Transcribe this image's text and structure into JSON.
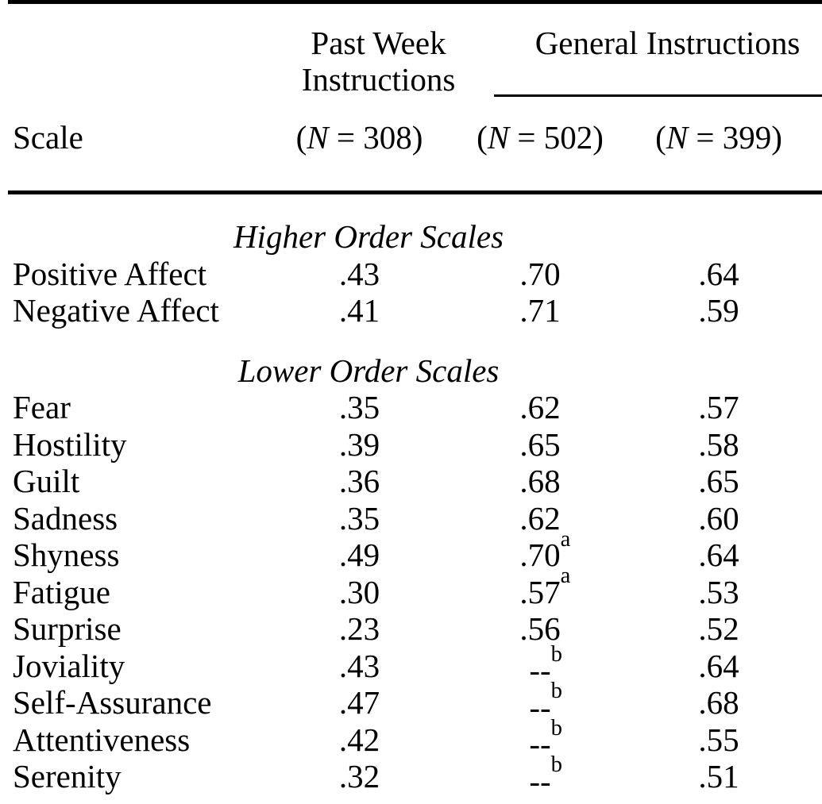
{
  "table": {
    "header": {
      "col1_line1": "Past Week",
      "col1_line2": "Instructions",
      "group": "General Instructions",
      "scale": "Scale",
      "n_cols": [
        {
          "pre": "(",
          "it": "N",
          "post": " = 308)"
        },
        {
          "pre": "(",
          "it": "N",
          "post": " = 502)"
        },
        {
          "pre": "(",
          "it": "N",
          "post": " = 399)"
        }
      ]
    },
    "sections": [
      {
        "heading": "Higher Order Scales",
        "rows": [
          {
            "label": "Positive Affect",
            "past_week": ".43",
            "general_502": ".70",
            "general_502_sup": "",
            "general_399": ".64"
          },
          {
            "label": "Negative Affect",
            "past_week": ".41",
            "general_502": ".71",
            "general_502_sup": "",
            "general_399": ".59"
          }
        ]
      },
      {
        "heading": "Lower Order Scales",
        "rows": [
          {
            "label": "Fear",
            "past_week": ".35",
            "general_502": ".62",
            "general_502_sup": "",
            "general_399": ".57"
          },
          {
            "label": "Hostility",
            "past_week": ".39",
            "general_502": ".65",
            "general_502_sup": "",
            "general_399": ".58"
          },
          {
            "label": "Guilt",
            "past_week": ".36",
            "general_502": ".68",
            "general_502_sup": "",
            "general_399": ".65"
          },
          {
            "label": "Sadness",
            "past_week": ".35",
            "general_502": ".62",
            "general_502_sup": "",
            "general_399": ".60"
          },
          {
            "label": "Shyness",
            "past_week": ".49",
            "general_502": ".70",
            "general_502_sup": "a",
            "general_399": ".64"
          },
          {
            "label": "Fatigue",
            "past_week": ".30",
            "general_502": ".57",
            "general_502_sup": "a",
            "general_399": ".53"
          },
          {
            "label": "Surprise",
            "past_week": ".23",
            "general_502": ".56",
            "general_502_sup": "",
            "general_399": ".52"
          },
          {
            "label": "Joviality",
            "past_week": ".43",
            "general_502": "--",
            "general_502_sup": "b",
            "general_399": ".64"
          },
          {
            "label": "Self-Assurance",
            "past_week": ".47",
            "general_502": "--",
            "general_502_sup": "b",
            "general_399": ".68"
          },
          {
            "label": "Attentiveness",
            "past_week": ".42",
            "general_502": "--",
            "general_502_sup": "b",
            "general_399": ".55"
          },
          {
            "label": "Serenity",
            "past_week": ".32",
            "general_502": "--",
            "general_502_sup": "b",
            "general_399": ".51"
          }
        ]
      }
    ]
  }
}
